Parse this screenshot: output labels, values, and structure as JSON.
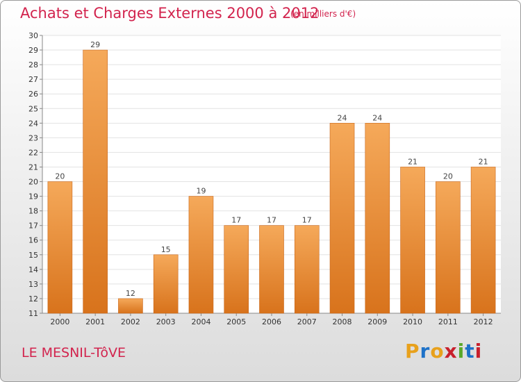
{
  "header": {
    "title": "Achats et Charges Externes 2000 à 2012",
    "subtitle": "(en milliers d'€)"
  },
  "footer": {
    "commune": "LE MESNIL-TôVE",
    "logo_text": "Proxiti"
  },
  "colors": {
    "title": "#d2234d",
    "bar_light": "#f5a95a",
    "bar_dark": "#d8731c",
    "logo_letters": [
      "#e8a11c",
      "#1e72c8",
      "#e8a11c",
      "#c8202c",
      "#5aa82a",
      "#1e72c8",
      "#c8202c"
    ]
  },
  "chart_data": {
    "type": "bar",
    "categories": [
      "2000",
      "2001",
      "2002",
      "2003",
      "2004",
      "2005",
      "2006",
      "2007",
      "2008",
      "2009",
      "2010",
      "2011",
      "2012"
    ],
    "values": [
      20,
      29,
      12,
      15,
      19,
      17,
      17,
      17,
      24,
      24,
      21,
      20,
      21
    ],
    "ylim": [
      11,
      30
    ],
    "yticks": [
      11,
      12,
      13,
      14,
      15,
      16,
      17,
      18,
      19,
      20,
      21,
      22,
      23,
      24,
      25,
      26,
      27,
      28,
      29,
      30
    ],
    "grid": true,
    "legend": "none"
  }
}
